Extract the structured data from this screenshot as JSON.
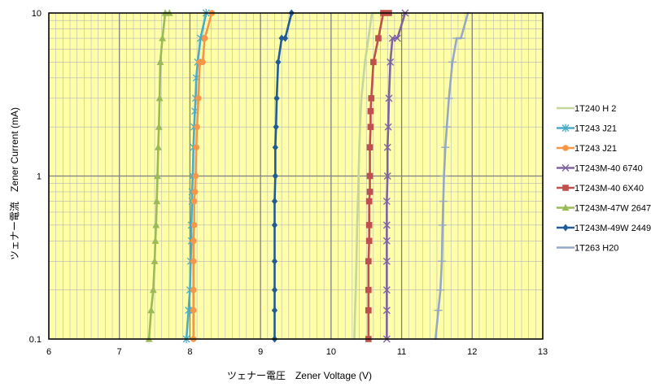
{
  "chart_data": {
    "type": "scatter",
    "xlabel": "ツェナー電圧　Zener Voltage (V)",
    "ylabel": "ツェナー電流　Zener Current (mA)",
    "xlim": [
      6,
      13
    ],
    "ylim": [
      0.1,
      10
    ],
    "yscale": "log",
    "x_ticks": [
      "6",
      "7",
      "8",
      "9",
      "10",
      "11",
      "12",
      "13"
    ],
    "y_ticks": [
      "0.1",
      "1",
      "10"
    ],
    "plot_background": "#ffffa8",
    "grid": true,
    "legend_position": "right",
    "series": [
      {
        "name": "1T240 H 2",
        "color": "#c3d69b",
        "marker": "none",
        "x": [
          10.33,
          10.34,
          10.35,
          10.36,
          10.37,
          10.38,
          10.39,
          10.4,
          10.41,
          10.43,
          10.48,
          10.53,
          10.58,
          10.66,
          10.78
        ],
        "y": [
          0.1,
          0.15,
          0.2,
          0.3,
          0.5,
          0.7,
          1,
          1.5,
          2,
          3,
          5,
          7,
          10,
          10,
          10
        ]
      },
      {
        "name": "1T243 J21",
        "color": "#4bacc6",
        "marker": "star",
        "x": [
          7.95,
          7.98,
          8.0,
          8.01,
          8.02,
          8.02,
          8.03,
          8.03,
          8.04,
          8.05,
          8.06,
          8.07,
          8.08,
          8.09,
          8.11,
          8.15,
          8.23
        ],
        "y": [
          0.1,
          0.15,
          0.2,
          0.3,
          0.4,
          0.5,
          0.7,
          0.8,
          1,
          1.5,
          2,
          2.5,
          3,
          4,
          5,
          7,
          10
        ]
      },
      {
        "name": "1T243 J21",
        "color": "#f79646",
        "marker": "circle",
        "x": [
          8.05,
          8.05,
          8.05,
          8.05,
          8.05,
          8.06,
          8.06,
          8.07,
          8.08,
          8.09,
          8.1,
          8.12,
          8.14,
          8.18,
          8.21,
          8.31
        ],
        "y": [
          0.1,
          0.15,
          0.2,
          0.3,
          0.4,
          0.5,
          0.7,
          0.8,
          1,
          1.5,
          2,
          3,
          5,
          5,
          7,
          10
        ]
      },
      {
        "name": "1T243M-40 6740",
        "color": "#8064a2",
        "marker": "cross",
        "x": [
          10.79,
          10.79,
          10.79,
          10.79,
          10.79,
          10.79,
          10.79,
          10.8,
          10.8,
          10.81,
          10.82,
          10.84,
          10.87,
          10.94,
          11.05
        ],
        "y": [
          0.1,
          0.15,
          0.2,
          0.3,
          0.4,
          0.5,
          0.7,
          1,
          1.5,
          2,
          3,
          5,
          7,
          7,
          10
        ]
      },
      {
        "name": "1T243M-40 6X40",
        "color": "#c0504d",
        "marker": "square",
        "x": [
          10.53,
          10.53,
          10.53,
          10.53,
          10.54,
          10.54,
          10.54,
          10.55,
          10.55,
          10.55,
          10.56,
          10.56,
          10.57,
          10.6,
          10.67,
          10.74,
          10.82
        ],
        "y": [
          0.1,
          0.15,
          0.2,
          0.3,
          0.4,
          0.5,
          0.7,
          0.8,
          1,
          1.5,
          2,
          2.5,
          3,
          5,
          7,
          10,
          10
        ]
      },
      {
        "name": "1T243M-47W 2647",
        "color": "#9bbb59",
        "marker": "triangle",
        "x": [
          7.42,
          7.45,
          7.48,
          7.5,
          7.51,
          7.52,
          7.53,
          7.54,
          7.55,
          7.56,
          7.57,
          7.58,
          7.61,
          7.65,
          7.71
        ],
        "y": [
          0.1,
          0.15,
          0.2,
          0.3,
          0.4,
          0.5,
          0.7,
          1,
          1.5,
          2,
          3,
          5,
          7,
          10,
          10
        ]
      },
      {
        "name": "1T243M-49W 2449",
        "color": "#1f5c99",
        "marker": "diamond",
        "x": [
          9.2,
          9.2,
          9.2,
          9.2,
          9.2,
          9.2,
          9.21,
          9.21,
          9.22,
          9.23,
          9.25,
          9.3,
          9.35,
          9.44
        ],
        "y": [
          0.1,
          0.15,
          0.2,
          0.3,
          0.5,
          0.7,
          1,
          1.5,
          2,
          3,
          5,
          7,
          7,
          10
        ]
      },
      {
        "name": "1T263 H20",
        "color": "#95a8c8",
        "marker": "dash",
        "x": [
          11.48,
          11.52,
          11.55,
          11.57,
          11.58,
          11.59,
          11.6,
          11.62,
          11.64,
          11.67,
          11.72,
          11.78,
          11.84,
          11.94
        ],
        "y": [
          0.1,
          0.15,
          0.2,
          0.3,
          0.5,
          0.7,
          1,
          1.5,
          2,
          3,
          5,
          7,
          7,
          10
        ]
      }
    ]
  }
}
